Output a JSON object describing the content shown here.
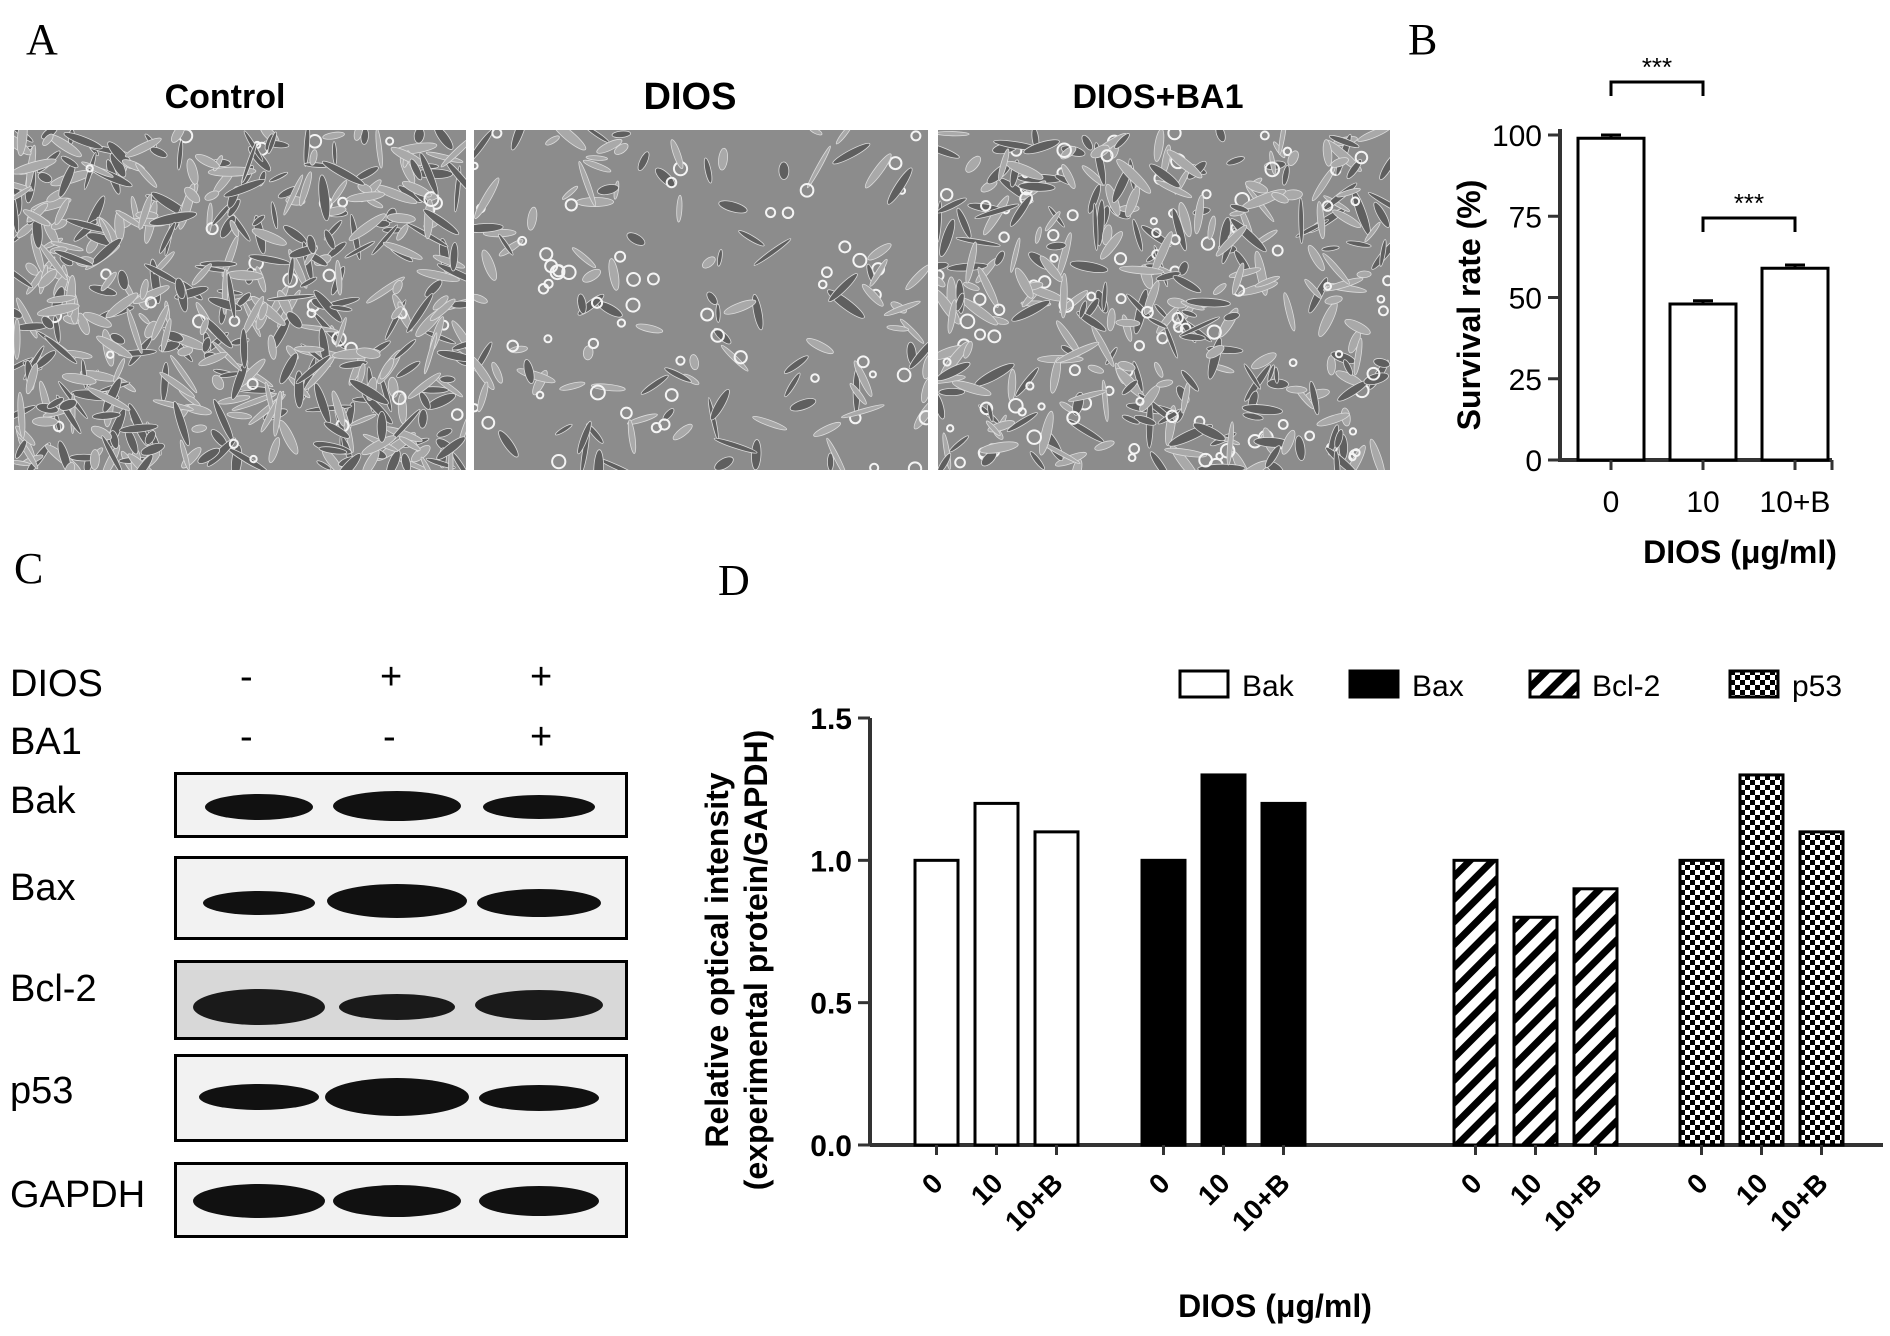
{
  "figure": {
    "panel_labels": {
      "a": "A",
      "b": "B",
      "c": "C",
      "d": "D"
    },
    "micrographs": [
      {
        "title": "Control"
      },
      {
        "title": "DIOS"
      },
      {
        "title": "DIOS+BA1"
      }
    ],
    "western_blot": {
      "treatment_rows": [
        {
          "name": "DIOS",
          "marks": [
            "-",
            "+",
            "+"
          ]
        },
        {
          "name": "BA1",
          "marks": [
            "-",
            "-",
            "+"
          ]
        }
      ],
      "proteins": [
        "Bak",
        "Bax",
        "Bcl-2",
        "p53",
        "GAPDH"
      ]
    }
  },
  "chart_data": [
    {
      "panel": "B",
      "type": "bar",
      "categories": [
        "0",
        "10",
        "10+B"
      ],
      "values": [
        99,
        48,
        59
      ],
      "errors": [
        1,
        1,
        1
      ],
      "ylabel": "Survival rate (%)",
      "xlabel": "DIOS (μg/ml)",
      "ylim": [
        0,
        100
      ],
      "yticks": [
        "0",
        "25",
        "50",
        "75",
        "100"
      ],
      "significance": [
        {
          "between": [
            "0",
            "10"
          ],
          "label": "***"
        },
        {
          "between": [
            "10",
            "10+B"
          ],
          "label": "***"
        }
      ],
      "grid": false
    },
    {
      "panel": "D",
      "type": "bar",
      "categories": [
        "0",
        "10",
        "10+B"
      ],
      "series": [
        {
          "name": "Bak",
          "values": [
            1.0,
            1.2,
            1.1
          ],
          "fill": "white"
        },
        {
          "name": "Bax",
          "values": [
            1.0,
            1.3,
            1.2
          ],
          "fill": "black"
        },
        {
          "name": "Bcl-2",
          "values": [
            1.0,
            0.8,
            0.9
          ],
          "fill": "hatched"
        },
        {
          "name": "p53",
          "values": [
            1.0,
            1.3,
            1.1
          ],
          "fill": "checkered"
        }
      ],
      "ylabel_line1": "Relative optical intensity",
      "ylabel_line2": "(experimental protein/GAPDH)",
      "xlabel": "DIOS (μg/ml)",
      "ylim": [
        0,
        1.5
      ],
      "yticks": [
        "0.0",
        "0.5",
        "1.0",
        "1.5"
      ],
      "legend_position": "top-right",
      "grid": false
    }
  ]
}
